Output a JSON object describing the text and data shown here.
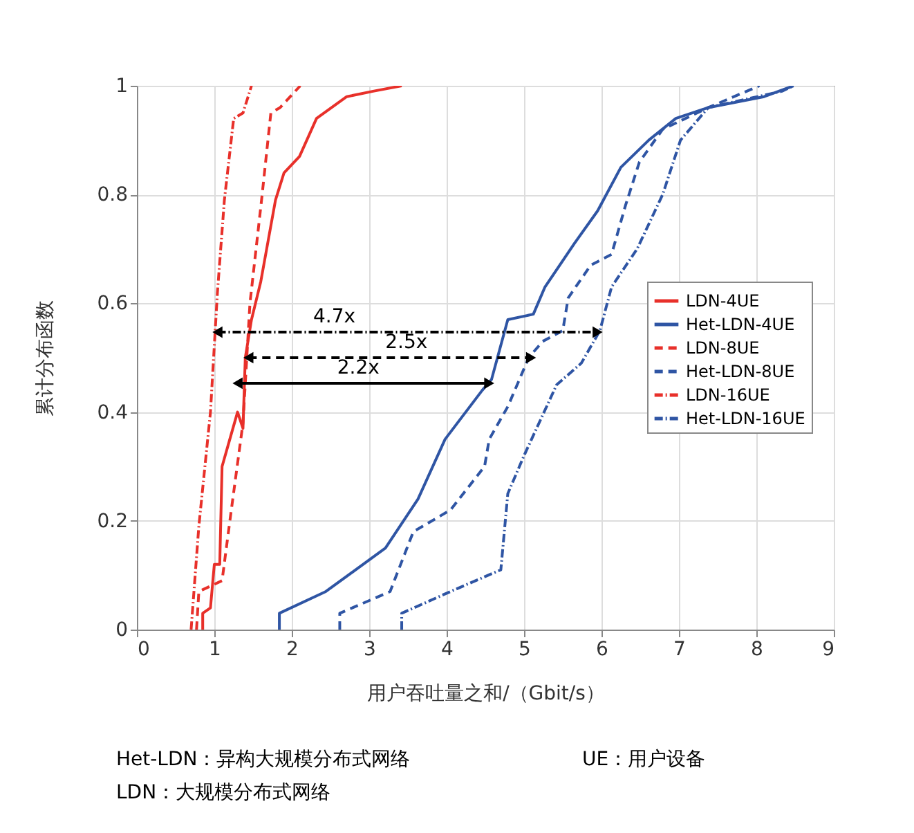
{
  "chart_data": {
    "type": "line",
    "xlabel": "用户吞吐量之和/（Gbit/s）",
    "ylabel": "累计分布函数",
    "xlim": [
      0,
      9
    ],
    "xticks": [
      0,
      1,
      2,
      3,
      4,
      5,
      6,
      7,
      8,
      9
    ],
    "ylim": [
      0,
      1
    ],
    "yticks": [
      0,
      0.2,
      0.4,
      0.6,
      0.8,
      1
    ],
    "grid": true,
    "legend": "right",
    "marker": "none",
    "series": [
      {
        "name": "LDN-4UE",
        "color": "#e8302a",
        "line_style": "solid",
        "x": [
          0.85,
          0.85,
          0.95,
          1.0,
          1.07,
          1.1,
          1.2,
          1.3,
          1.37,
          1.4,
          1.48,
          1.6,
          1.79,
          1.9,
          2.1,
          2.32,
          2.71,
          3.05,
          3.42
        ],
        "values": [
          0,
          0.03,
          0.04,
          0.12,
          0.12,
          0.3,
          0.35,
          0.4,
          0.37,
          0.5,
          0.57,
          0.64,
          0.79,
          0.84,
          0.87,
          0.94,
          0.98,
          0.99,
          1
        ]
      },
      {
        "name": "Het-LDN-4UE",
        "color": "#2f55a4",
        "line_style": "solid",
        "x": [
          1.84,
          1.84,
          2.44,
          3.21,
          3.63,
          3.98,
          4.46,
          4.58,
          4.79,
          5.12,
          5.27,
          5.65,
          5.95,
          6.25,
          6.61,
          6.96,
          7.38,
          8.1,
          8.48
        ],
        "values": [
          0,
          0.03,
          0.07,
          0.15,
          0.24,
          0.35,
          0.44,
          0.46,
          0.57,
          0.58,
          0.63,
          0.71,
          0.77,
          0.85,
          0.9,
          0.94,
          0.96,
          0.98,
          1
        ]
      },
      {
        "name": "LDN-8UE",
        "color": "#e8302a",
        "line_style": "dashed",
        "x": [
          0.77,
          0.8,
          1.1,
          1.21,
          1.37,
          1.46,
          1.61,
          1.73,
          1.85,
          2.11
        ],
        "values": [
          0,
          0.07,
          0.09,
          0.21,
          0.38,
          0.6,
          0.79,
          0.95,
          0.96,
          1
        ]
      },
      {
        "name": "Het-LDN-8UE",
        "color": "#2f55a4",
        "line_style": "dashed",
        "x": [
          2.62,
          2.62,
          3.27,
          3.57,
          4.05,
          4.49,
          4.55,
          4.79,
          5.06,
          5.24,
          5.5,
          5.57,
          5.86,
          6.13,
          6.31,
          6.49,
          6.79,
          7.38,
          8.04
        ],
        "values": [
          0,
          0.03,
          0.07,
          0.18,
          0.22,
          0.3,
          0.35,
          0.41,
          0.5,
          0.53,
          0.55,
          0.61,
          0.67,
          0.69,
          0.78,
          0.86,
          0.92,
          0.96,
          1
        ]
      },
      {
        "name": "LDN-16UE",
        "color": "#e8302a",
        "line_style": "dotted",
        "x": [
          0.7,
          0.8,
          0.95,
          1.04,
          1.13,
          1.25,
          1.37,
          1.48
        ],
        "values": [
          0,
          0.19,
          0.4,
          0.62,
          0.79,
          0.94,
          0.95,
          1
        ]
      },
      {
        "name": "Het-LDN-16UE",
        "color": "#2f55a4",
        "line_style": "dotted",
        "x": [
          3.42,
          3.42,
          4.05,
          4.7,
          4.79,
          5.0,
          5.42,
          5.74,
          5.98,
          6.13,
          6.46,
          6.79,
          7.02,
          7.38,
          8.33,
          8.48
        ],
        "values": [
          0,
          0.03,
          0.07,
          0.11,
          0.25,
          0.32,
          0.45,
          0.49,
          0.55,
          0.63,
          0.7,
          0.8,
          0.9,
          0.96,
          0.99,
          1
        ]
      },
      {
        "color": "#000000",
        "line_style": "dotted",
        "marker": "triangle",
        "x": [
          1.04,
          5.95
        ],
        "values": [
          0.547,
          0.547
        ]
      },
      {
        "color": "#000000",
        "line_style": "dashed",
        "marker": "triangle",
        "x": [
          1.44,
          5.09
        ],
        "values": [
          0.5,
          0.5
        ]
      },
      {
        "color": "#000000",
        "line_style": "solid",
        "marker": "triangle",
        "x": [
          1.3,
          4.55
        ],
        "values": [
          0.453,
          0.453
        ]
      }
    ],
    "annotations": [
      {
        "text": "4.7x",
        "x": 2.55,
        "y": 0.547
      },
      {
        "text": "2.5x",
        "x": 3.48,
        "y": 0.5
      },
      {
        "text": "2.2x",
        "x": 2.86,
        "y": 0.453
      },
      "Het-LDN：异构大规模分布式网络",
      "UE：用户设备",
      "LDN：大规模分布式网络"
    ]
  }
}
